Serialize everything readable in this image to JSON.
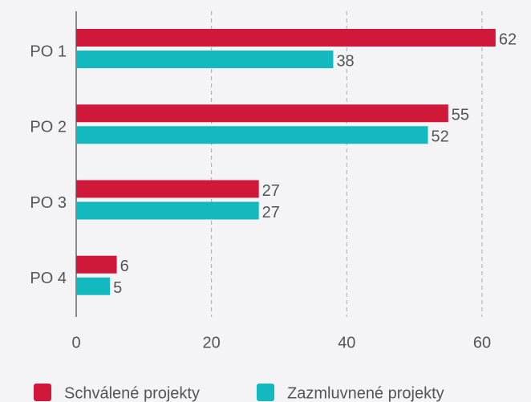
{
  "chart_data": {
    "type": "bar",
    "orientation": "horizontal",
    "categories": [
      "PO 1",
      "PO 2",
      "PO 3",
      "PO 4"
    ],
    "series": [
      {
        "name": "Schválené projekty",
        "color": "#d0193a",
        "values": [
          62,
          55,
          27,
          6
        ]
      },
      {
        "name": "Zazmluvnené projekty",
        "color": "#14b8bf",
        "values": [
          38,
          52,
          27,
          5
        ]
      }
    ],
    "xlim": [
      0,
      67
    ],
    "xticks": [
      0,
      20,
      40,
      60
    ],
    "grid": true,
    "legend": "bottom"
  }
}
